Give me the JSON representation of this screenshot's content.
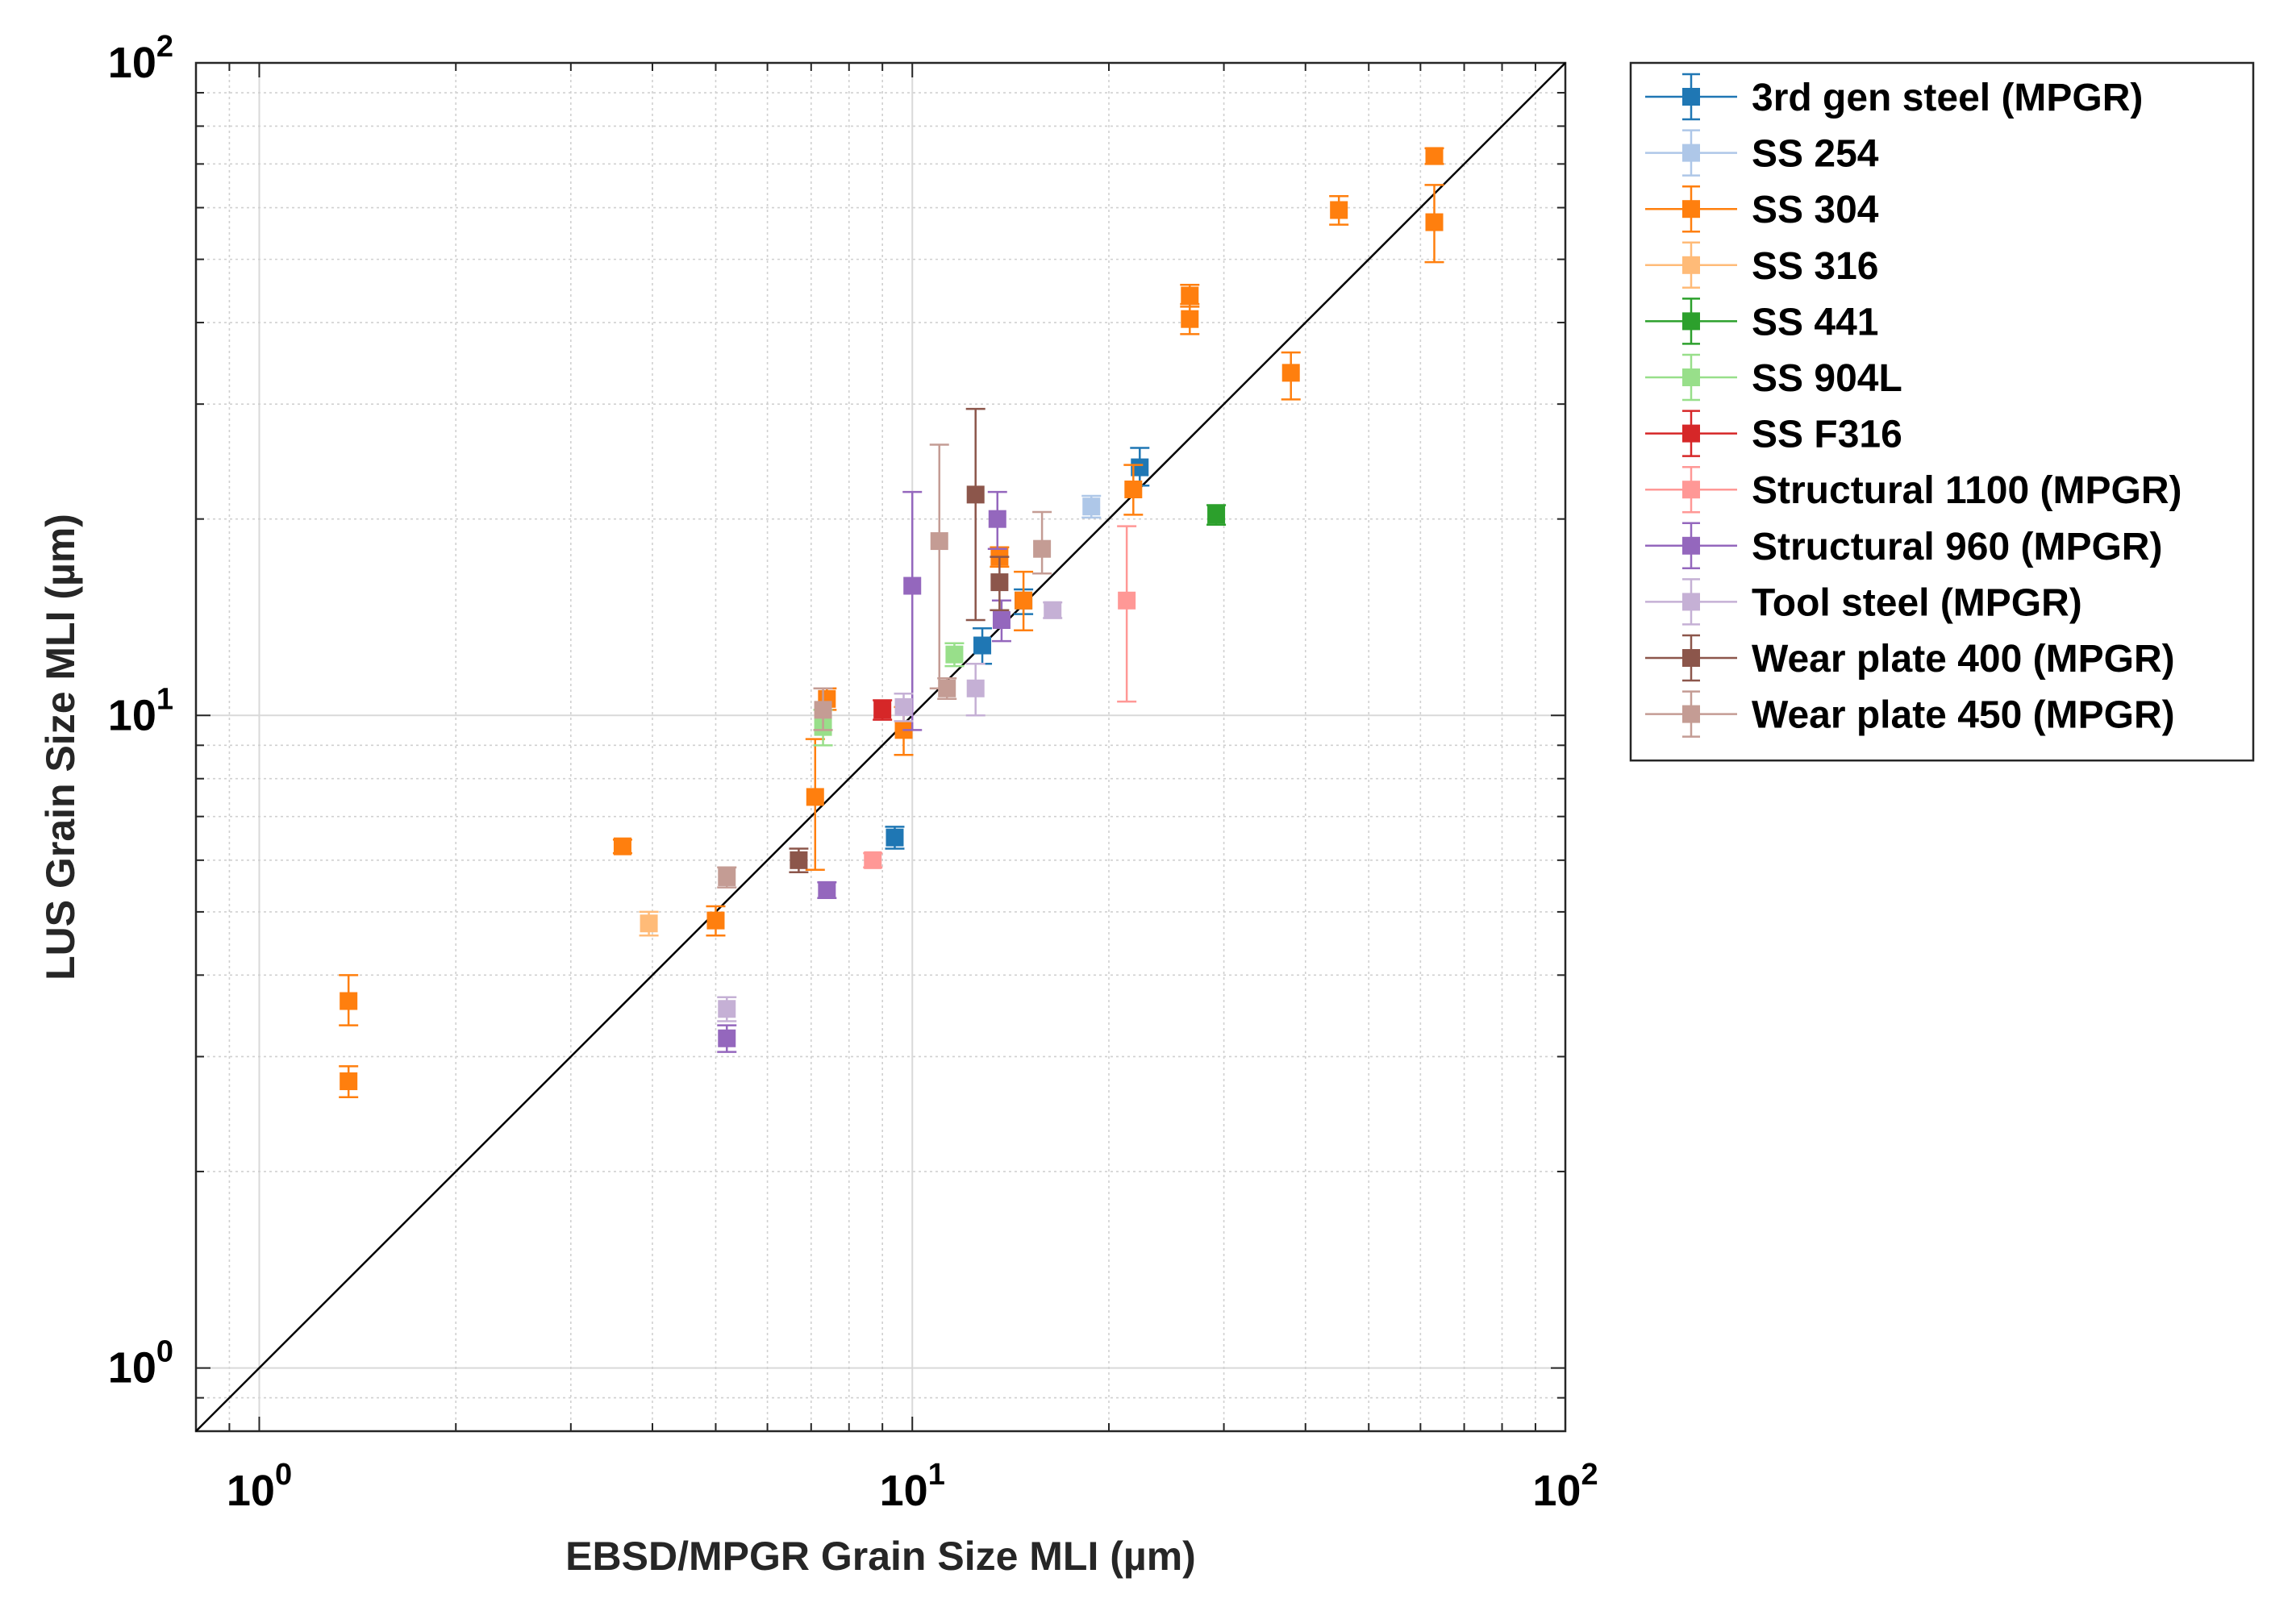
{
  "chart_data": {
    "type": "scatter",
    "xscale": "log",
    "yscale": "log",
    "xlim": [
      0.8,
      100
    ],
    "ylim": [
      0.8,
      100
    ],
    "xlabel": "EBSD/MPGR Grain Size MLI (µm)",
    "ylabel": "LUS Grain Size MLI (µm)",
    "grid": true,
    "legend_position": "outside-right-top",
    "reference_line": "y = x",
    "x_ticks": [
      {
        "value": 1,
        "base": "10",
        "exp": "0"
      },
      {
        "value": 10,
        "base": "10",
        "exp": "1"
      },
      {
        "value": 100,
        "base": "10",
        "exp": "2"
      }
    ],
    "y_ticks": [
      {
        "value": 1,
        "base": "10",
        "exp": "0"
      },
      {
        "value": 10,
        "base": "10",
        "exp": "1"
      },
      {
        "value": 100,
        "base": "10",
        "exp": "2"
      }
    ],
    "series": [
      {
        "name": "3rd gen steel (MPGR)",
        "color": "#1f77b4",
        "points": [
          {
            "x": 9.4,
            "y": 6.5,
            "lo": 6.25,
            "hi": 6.75
          },
          {
            "x": 12.8,
            "y": 12.8,
            "lo": 12.0,
            "hi": 13.6
          },
          {
            "x": 14.8,
            "y": 15.0,
            "lo": 14.3,
            "hi": 15.6
          },
          {
            "x": 22.3,
            "y": 24.0,
            "lo": 22.5,
            "hi": 25.7
          }
        ]
      },
      {
        "name": "SS 254",
        "color": "#aec7e8",
        "points": [
          {
            "x": 18.8,
            "y": 20.9,
            "lo": 20.1,
            "hi": 21.7
          }
        ]
      },
      {
        "name": "SS 304",
        "color": "#ff7f0e",
        "points": [
          {
            "x": 1.37,
            "y": 3.65,
            "lo": 3.35,
            "hi": 4.0
          },
          {
            "x": 1.37,
            "y": 2.75,
            "lo": 2.6,
            "hi": 2.9
          },
          {
            "x": 3.6,
            "y": 6.3,
            "lo": 6.15,
            "hi": 6.45
          },
          {
            "x": 5.0,
            "y": 4.85,
            "lo": 4.6,
            "hi": 5.1
          },
          {
            "x": 7.1,
            "y": 7.5,
            "lo": 5.8,
            "hi": 9.2
          },
          {
            "x": 7.4,
            "y": 10.6,
            "lo": 10.2,
            "hi": 11.0
          },
          {
            "x": 9.7,
            "y": 9.5,
            "lo": 8.7,
            "hi": 10.3
          },
          {
            "x": 13.6,
            "y": 17.5,
            "lo": 16.9,
            "hi": 18.1
          },
          {
            "x": 14.8,
            "y": 15.0,
            "lo": 13.5,
            "hi": 16.6
          },
          {
            "x": 21.8,
            "y": 22.2,
            "lo": 20.3,
            "hi": 24.2
          },
          {
            "x": 26.6,
            "y": 44.0,
            "lo": 42.3,
            "hi": 45.7
          },
          {
            "x": 26.6,
            "y": 40.5,
            "lo": 38.4,
            "hi": 42.7
          },
          {
            "x": 38.0,
            "y": 33.5,
            "lo": 30.5,
            "hi": 36.0
          },
          {
            "x": 45.0,
            "y": 59.5,
            "lo": 56.5,
            "hi": 62.5
          },
          {
            "x": 63.0,
            "y": 72.0,
            "lo": 70.0,
            "hi": 74.0
          },
          {
            "x": 63.0,
            "y": 57.0,
            "lo": 49.5,
            "hi": 65.0
          }
        ]
      },
      {
        "name": "SS 316",
        "color": "#ffbb78",
        "points": [
          {
            "x": 3.95,
            "y": 4.8,
            "lo": 4.6,
            "hi": 5.0
          }
        ]
      },
      {
        "name": "SS 441",
        "color": "#2ca02c",
        "points": [
          {
            "x": 29.2,
            "y": 20.3,
            "lo": 19.6,
            "hi": 21.0
          }
        ]
      },
      {
        "name": "SS 904L",
        "color": "#98df8a",
        "points": [
          {
            "x": 11.6,
            "y": 12.4,
            "lo": 11.9,
            "hi": 12.9
          },
          {
            "x": 7.3,
            "y": 9.6,
            "lo": 9.0,
            "hi": 10.2
          }
        ]
      },
      {
        "name": "SS F316",
        "color": "#d62728",
        "points": [
          {
            "x": 9.0,
            "y": 10.2,
            "lo": 9.85,
            "hi": 10.55
          }
        ]
      },
      {
        "name": "Structural 1100 (MPGR)",
        "color": "#ff9896",
        "points": [
          {
            "x": 8.7,
            "y": 6.0,
            "lo": 5.85,
            "hi": 6.15
          },
          {
            "x": 21.3,
            "y": 15.0,
            "lo": 10.5,
            "hi": 19.5
          }
        ]
      },
      {
        "name": "Structural 960 (MPGR)",
        "color": "#9467bd",
        "points": [
          {
            "x": 5.2,
            "y": 3.2,
            "lo": 3.05,
            "hi": 3.35
          },
          {
            "x": 7.4,
            "y": 5.4,
            "lo": 5.25,
            "hi": 5.55
          },
          {
            "x": 10.0,
            "y": 15.8,
            "lo": 9.5,
            "hi": 22.0
          },
          {
            "x": 13.5,
            "y": 20.0,
            "lo": 18.0,
            "hi": 22.0
          },
          {
            "x": 13.7,
            "y": 14.0,
            "lo": 13.0,
            "hi": 15.0
          }
        ]
      },
      {
        "name": "Tool steel (MPGR)",
        "color": "#c5b0d5",
        "points": [
          {
            "x": 5.2,
            "y": 3.55,
            "lo": 3.4,
            "hi": 3.7
          },
          {
            "x": 9.7,
            "y": 10.3,
            "lo": 9.8,
            "hi": 10.8
          },
          {
            "x": 12.5,
            "y": 11.0,
            "lo": 10.0,
            "hi": 12.0
          },
          {
            "x": 16.4,
            "y": 14.5,
            "lo": 14.1,
            "hi": 14.9
          }
        ]
      },
      {
        "name": "Wear plate 400 (MPGR)",
        "color": "#8c564b",
        "points": [
          {
            "x": 6.7,
            "y": 6.0,
            "lo": 5.75,
            "hi": 6.25
          },
          {
            "x": 12.5,
            "y": 21.8,
            "lo": 14.0,
            "hi": 29.5
          },
          {
            "x": 13.6,
            "y": 16.0,
            "lo": 14.5,
            "hi": 17.5
          }
        ]
      },
      {
        "name": "Wear plate 450 (MPGR)",
        "color": "#c49c94",
        "points": [
          {
            "x": 5.2,
            "y": 5.65,
            "lo": 5.45,
            "hi": 5.85
          },
          {
            "x": 7.3,
            "y": 10.2,
            "lo": 9.5,
            "hi": 11.0
          },
          {
            "x": 11.0,
            "y": 18.5,
            "lo": 11.0,
            "hi": 26.0
          },
          {
            "x": 11.3,
            "y": 11.0,
            "lo": 10.6,
            "hi": 11.4
          },
          {
            "x": 15.8,
            "y": 18.0,
            "lo": 16.5,
            "hi": 20.5
          }
        ]
      }
    ]
  }
}
